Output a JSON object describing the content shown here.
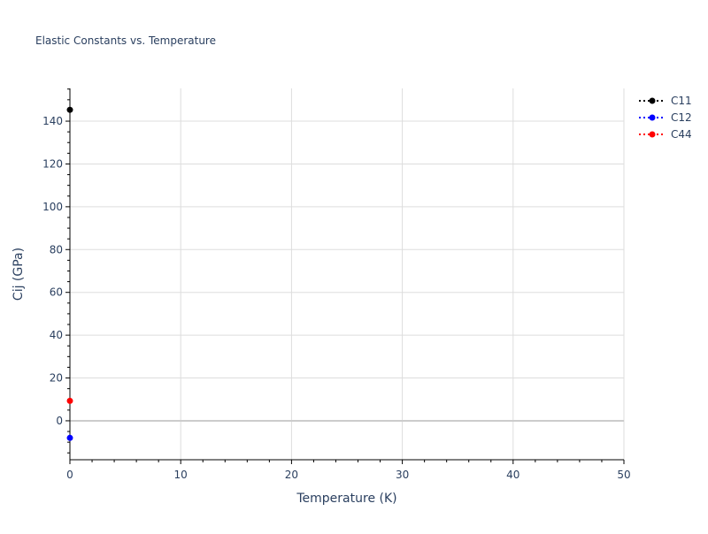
{
  "chart_data": {
    "type": "scatter",
    "title": "Elastic Constants vs. Temperature",
    "xlabel": "Temperature (K)",
    "ylabel": "Cij (GPa)",
    "xlim": [
      0,
      50
    ],
    "ylim": [
      -18.2,
      155.3
    ],
    "xticks": [
      0,
      10,
      20,
      30,
      40,
      50
    ],
    "yticks": [
      0,
      20,
      40,
      60,
      80,
      100,
      120,
      140
    ],
    "grid": true,
    "legend": "top-right",
    "series": [
      {
        "name": "C11",
        "color": "#000000",
        "x": [
          0
        ],
        "y": [
          145.3
        ]
      },
      {
        "name": "C12",
        "color": "#0000ff",
        "x": [
          0
        ],
        "y": [
          -8.0
        ]
      },
      {
        "name": "C44",
        "color": "#ff0000",
        "x": [
          0
        ],
        "y": [
          9.3
        ]
      }
    ]
  }
}
